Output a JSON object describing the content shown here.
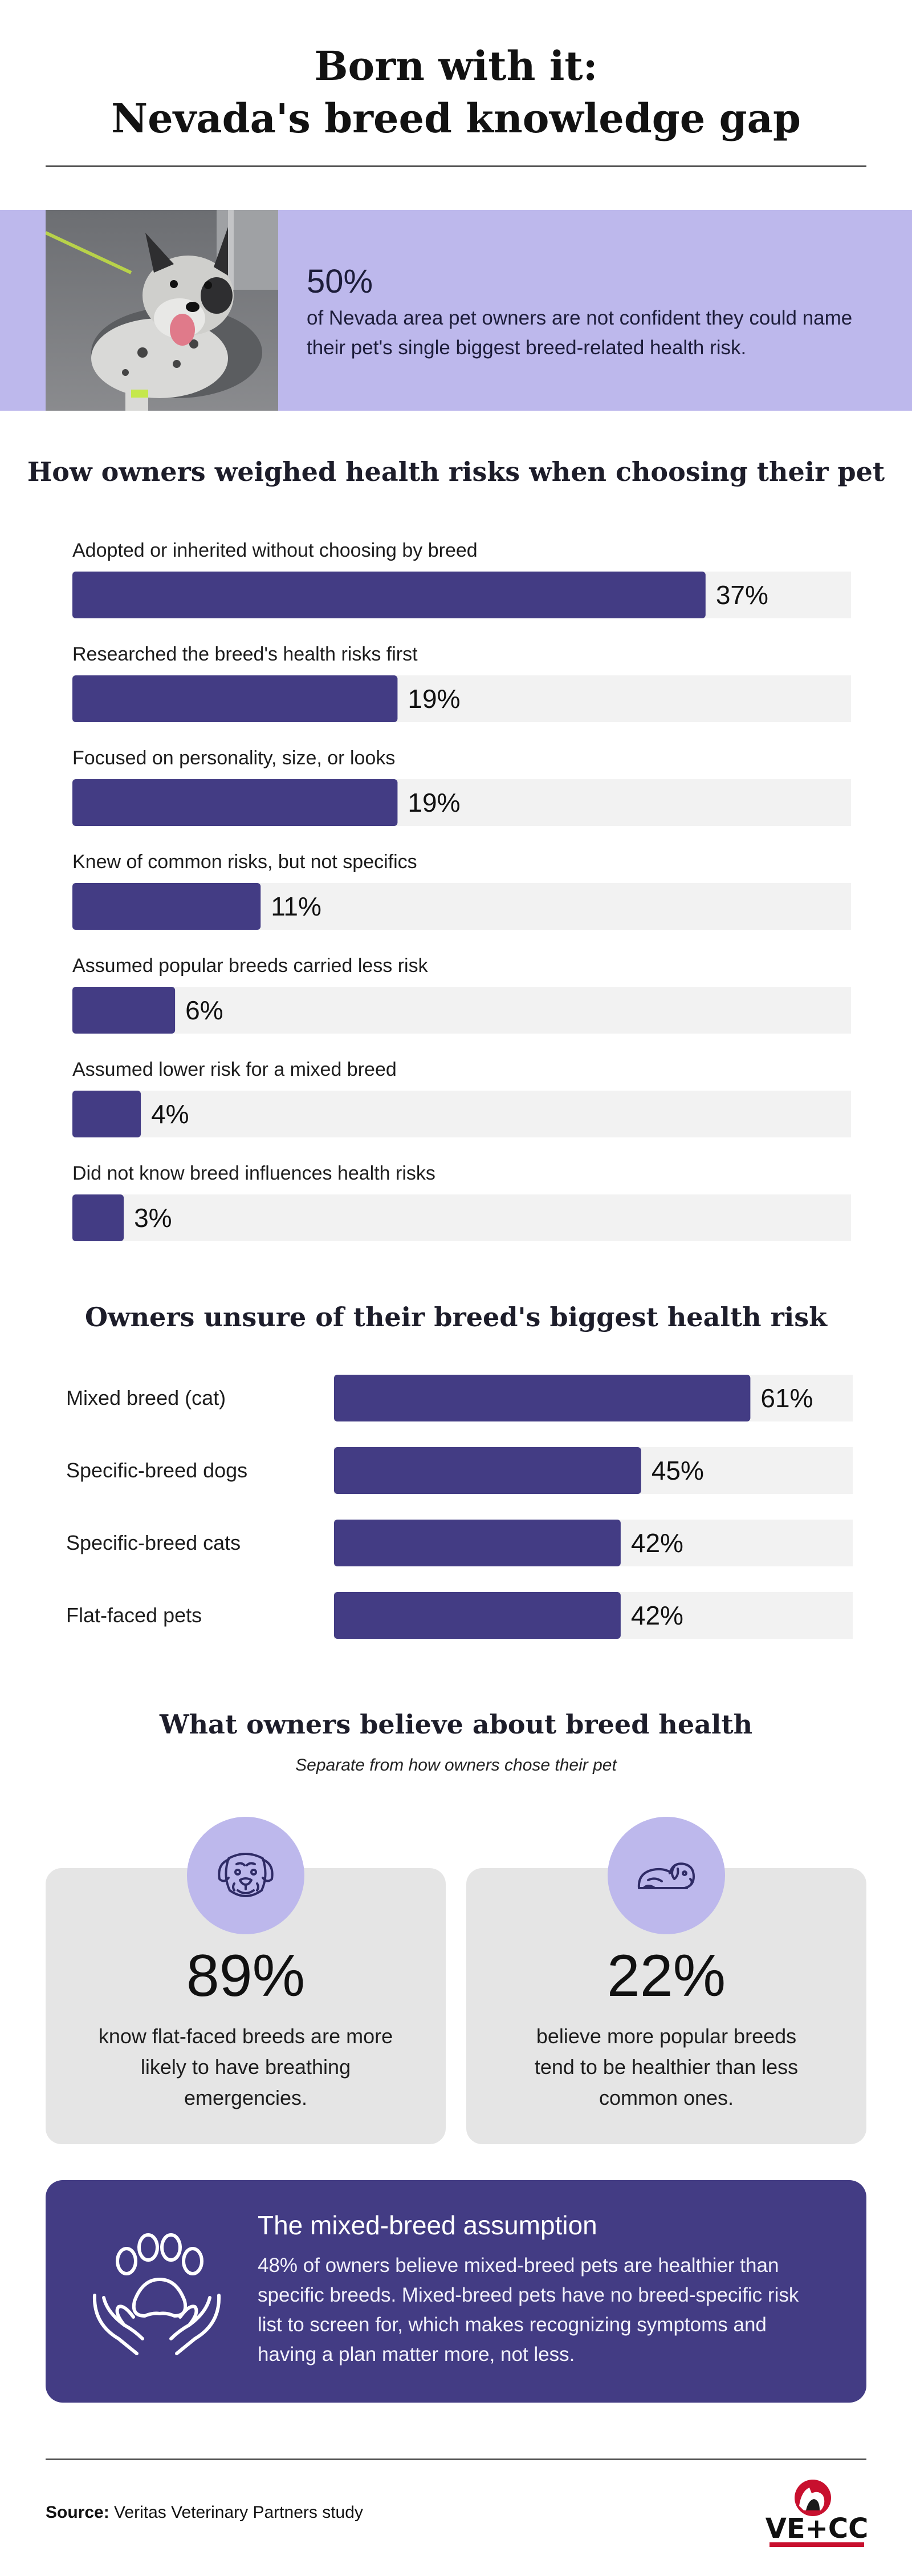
{
  "title": {
    "line1": "Born with it:",
    "line2": "Nevada's breed knowledge gap"
  },
  "hero": {
    "percent": "50%",
    "text": "of Nevada area pet owners are not confident they could name their pet's single biggest breed-related health risk."
  },
  "chart_data": [
    {
      "type": "bar",
      "orientation": "horizontal",
      "title": "How owners weighed health risks when choosing their pet",
      "categories": [
        "Adopted or inherited without choosing by breed",
        "Researched the breed's health risks first",
        "Focused on personality, size, or looks",
        "Knew of common risks, but not specifics",
        "Assumed popular breeds carried less risk",
        "Assumed lower risk for a mixed breed",
        "Did not know breed influences health risks"
      ],
      "values": [
        37,
        19,
        19,
        11,
        6,
        4,
        3
      ],
      "value_labels": [
        "37%",
        "19%",
        "19%",
        "11%",
        "6%",
        "4%",
        "3%"
      ],
      "xlim": [
        0,
        45.5
      ],
      "grid": false,
      "legend": "none"
    },
    {
      "type": "bar",
      "orientation": "horizontal",
      "title": "Owners unsure of their breed's biggest health risk",
      "categories": [
        "Mixed breed (cat)",
        "Specific-breed dogs",
        "Specific-breed cats",
        "Flat-faced pets"
      ],
      "values": [
        61,
        45,
        42,
        42
      ],
      "value_labels": [
        "61%",
        "45%",
        "42%",
        "42%"
      ],
      "xlim": [
        0,
        76
      ],
      "grid": false,
      "legend": "none"
    }
  ],
  "beliefs": {
    "title": "What owners believe about breed health",
    "subtitle": "Separate from how owners chose their pet",
    "cards": [
      {
        "icon": "flat-faced-dog-icon",
        "percent": "89%",
        "text": "know flat-faced breeds are more likely to have breathing emergencies."
      },
      {
        "icon": "sleeping-dog-icon",
        "percent": "22%",
        "text": "believe more popular breeds tend to be healthier than less common ones."
      }
    ]
  },
  "mixed": {
    "icon": "paw-in-hands-icon",
    "title": "The mixed-breed assumption",
    "body": "48% of owners believe mixed-breed pets are healthier than specific breeds. Mixed-breed pets have no breed-specific risk list to screen for, which makes recognizing symptoms and having a plan matter more, not less."
  },
  "source": {
    "label": "Source:",
    "text": " Veritas Veterinary Partners study"
  },
  "logo": {
    "text": "VE+CC",
    "icon": "vecc-logo-icon"
  },
  "colors": {
    "bar": "#433c84",
    "track": "#f2f2f2",
    "hero_bg": "#bdb8ec",
    "card_bg": "#e5e5e5",
    "logo_red": "#c8102e"
  }
}
